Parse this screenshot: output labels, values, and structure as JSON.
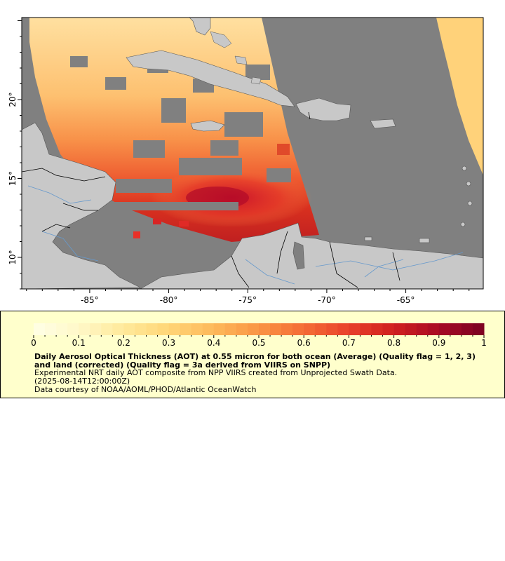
{
  "map": {
    "lon_labels": [
      "-85°",
      "-80°",
      "-75°",
      "-70°",
      "-65°"
    ],
    "lon_values": [
      -85,
      -80,
      -75,
      -70,
      -65
    ],
    "lat_labels": [
      "20°",
      "15°",
      "10°"
    ],
    "lat_values": [
      20,
      15,
      10
    ],
    "lon_range": [
      -89.3,
      -60.1
    ],
    "lat_range": [
      8.0,
      25.2
    ],
    "colors": {
      "no_data": "#808080",
      "land": "#c8c8c8",
      "water_lines": "#6699cc",
      "borders": "#000000"
    }
  },
  "colorbar": {
    "ticks": [
      "0",
      "0.1",
      "0.2",
      "0.3",
      "0.4",
      "0.5",
      "0.6",
      "0.7",
      "0.8",
      "0.9",
      "1"
    ],
    "range": [
      0,
      1
    ],
    "colors": [
      "#ffffe6",
      "#fff8c8",
      "#ffe99a",
      "#ffd577",
      "#fdb85a",
      "#fa9444",
      "#f46c36",
      "#e8402a",
      "#d0201f",
      "#a80a25",
      "#7a0122"
    ]
  },
  "legend": {
    "title": "Daily Aerosol Optical Thickness (AOT) at 0.55 micron for both ocean (Average) (Quality flag = 1, 2, 3) and land (corrected) (Quality flag = 3a derived from VIIRS on SNPP)",
    "description": "Experimental NRT daily AOT composite from NPP VIIRS created from Unprojected Swath Data.",
    "time": "(2025-08-14T12:00:00Z)",
    "credit": "Data courtesy of NOAA/AOML/PHOD/Atlantic OceanWatch"
  }
}
